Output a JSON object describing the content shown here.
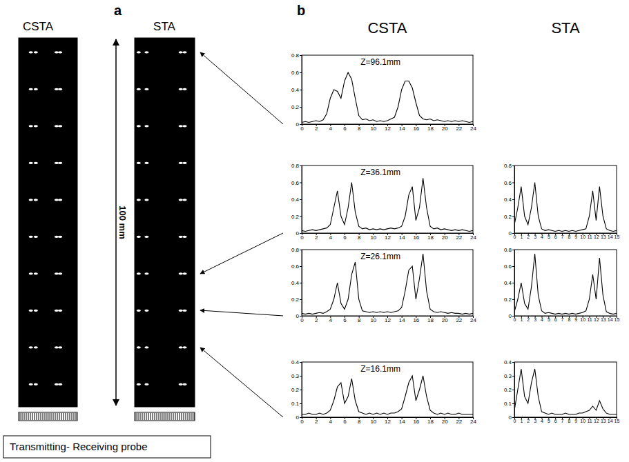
{
  "chart_data": [
    {
      "type": "scatter",
      "title": "CSTA",
      "annotations": [
        "a",
        "Transmitting- Receiving probe"
      ],
      "x": [
        5,
        7,
        15.5,
        17,
        5,
        7,
        15.5,
        17,
        5,
        7,
        15.5,
        17,
        5,
        7,
        15.5,
        17,
        5,
        7,
        15.5,
        17,
        5,
        7,
        15.5,
        17,
        5,
        7,
        15.5,
        17,
        5,
        7,
        15.5,
        17,
        5,
        7,
        15.5,
        17,
        5,
        7,
        15.5,
        17
      ],
      "values": [
        6.1,
        6.1,
        6.1,
        6.1,
        16.1,
        16.1,
        16.1,
        16.1,
        26.1,
        26.1,
        26.1,
        26.1,
        36.1,
        36.1,
        36.1,
        36.1,
        46.1,
        46.1,
        46.1,
        46.1,
        56.1,
        56.1,
        56.1,
        56.1,
        66.1,
        66.1,
        66.1,
        66.1,
        76.1,
        76.1,
        76.1,
        76.1,
        86.1,
        86.1,
        86.1,
        86.1,
        96.1,
        96.1,
        96.1,
        96.1
      ],
      "xlim": [
        0,
        24
      ],
      "ylim": [
        0,
        100
      ],
      "tick_labels": false,
      "marker": "dash",
      "color": "#ffffff"
    },
    {
      "type": "scatter",
      "title": "STA",
      "annotations": [
        "100 mm"
      ],
      "x": [
        1,
        3,
        11.5,
        12.5,
        1,
        3,
        11.5,
        12.5,
        1,
        3,
        11.5,
        12.5,
        1,
        3,
        11.5,
        12.5,
        1,
        3,
        11.5,
        12.5,
        1,
        3,
        11.5,
        12.5,
        1,
        3,
        11.5,
        12.5,
        1,
        3,
        11.5,
        12.5,
        1,
        3,
        11.5,
        12.5,
        1,
        3,
        11.5,
        12.5
      ],
      "values": [
        6.1,
        6.1,
        6.1,
        6.1,
        16.1,
        16.1,
        16.1,
        16.1,
        26.1,
        26.1,
        26.1,
        26.1,
        36.1,
        36.1,
        36.1,
        36.1,
        46.1,
        46.1,
        46.1,
        46.1,
        56.1,
        56.1,
        56.1,
        56.1,
        66.1,
        66.1,
        66.1,
        66.1,
        76.1,
        76.1,
        76.1,
        76.1,
        86.1,
        86.1,
        86.1,
        86.1,
        96.1,
        96.1,
        96.1,
        96.1
      ],
      "xlim": [
        0,
        15
      ],
      "ylim": [
        0,
        100
      ],
      "tick_labels": false,
      "marker": "dash",
      "color": "#ffffff"
    },
    {
      "type": "line",
      "title": "CSTA",
      "annotations": [
        "b",
        "Z=96.1mm"
      ],
      "x": [
        0,
        0.5,
        1,
        1.5,
        2,
        2.5,
        3,
        3.5,
        4,
        4.5,
        5,
        5.5,
        6,
        6.5,
        7,
        7.5,
        8,
        8.5,
        9,
        9.5,
        10,
        10.5,
        11,
        11.5,
        12,
        12.5,
        13,
        13.5,
        14,
        14.5,
        15,
        15.5,
        16,
        16.5,
        17,
        17.5,
        18,
        18.5,
        19,
        19.5,
        20,
        20.5,
        21,
        21.5,
        22,
        22.5,
        23,
        23.5,
        24
      ],
      "values": [
        0.02,
        0.03,
        0.02,
        0.03,
        0.04,
        0.03,
        0.05,
        0.12,
        0.3,
        0.4,
        0.38,
        0.3,
        0.5,
        0.6,
        0.52,
        0.3,
        0.1,
        0.05,
        0.06,
        0.04,
        0.05,
        0.03,
        0.04,
        0.03,
        0.04,
        0.06,
        0.08,
        0.2,
        0.4,
        0.5,
        0.5,
        0.42,
        0.25,
        0.1,
        0.06,
        0.05,
        0.06,
        0.04,
        0.05,
        0.04,
        0.03,
        0.04,
        0.03,
        0.04,
        0.03,
        0.04,
        0.03,
        0.02,
        0.03
      ],
      "xlim": [
        0,
        24
      ],
      "ylim": [
        0,
        0.8
      ],
      "xticks": [
        0,
        2,
        4,
        6,
        8,
        10,
        12,
        14,
        16,
        18,
        20,
        22,
        24
      ],
      "yticks": [
        0,
        0.2,
        0.4,
        0.6,
        0.8
      ],
      "color": "#000000"
    },
    {
      "type": "line",
      "annotations": [
        "Z=36.1mm"
      ],
      "x": [
        0,
        0.5,
        1,
        1.5,
        2,
        2.5,
        3,
        3.5,
        4,
        4.5,
        5,
        5.5,
        6,
        6.5,
        7,
        7.5,
        8,
        8.5,
        9,
        9.5,
        10,
        10.5,
        11,
        11.5,
        12,
        12.5,
        13,
        13.5,
        14,
        14.5,
        15,
        15.5,
        16,
        16.5,
        17,
        17.5,
        18,
        18.5,
        19,
        19.5,
        20,
        20.5,
        21,
        21.5,
        22,
        22.5,
        23,
        23.5,
        24
      ],
      "values": [
        0.03,
        0.02,
        0.03,
        0.04,
        0.03,
        0.04,
        0.05,
        0.06,
        0.1,
        0.3,
        0.5,
        0.2,
        0.1,
        0.3,
        0.6,
        0.25,
        0.08,
        0.05,
        0.06,
        0.04,
        0.05,
        0.04,
        0.05,
        0.04,
        0.05,
        0.06,
        0.05,
        0.06,
        0.08,
        0.2,
        0.45,
        0.55,
        0.15,
        0.3,
        0.65,
        0.3,
        0.08,
        0.05,
        0.06,
        0.04,
        0.05,
        0.04,
        0.03,
        0.04,
        0.03,
        0.04,
        0.03,
        0.02,
        0.03
      ],
      "xlim": [
        0,
        24
      ],
      "ylim": [
        0,
        0.8
      ],
      "xticks": [
        0,
        2,
        4,
        6,
        8,
        10,
        12,
        14,
        16,
        18,
        20,
        22,
        24
      ],
      "yticks": [
        0,
        0.2,
        0.4,
        0.6,
        0.8
      ],
      "color": "#000000"
    },
    {
      "type": "line",
      "annotations": [
        "Z=26.1mm"
      ],
      "x": [
        0,
        0.5,
        1,
        1.5,
        2,
        2.5,
        3,
        3.5,
        4,
        4.5,
        5,
        5.5,
        6,
        6.5,
        7,
        7.5,
        8,
        8.5,
        9,
        9.5,
        10,
        10.5,
        11,
        11.5,
        12,
        12.5,
        13,
        13.5,
        14,
        14.5,
        15,
        15.5,
        16,
        16.5,
        17,
        17.5,
        18,
        18.5,
        19,
        19.5,
        20,
        20.5,
        21,
        21.5,
        22,
        22.5,
        23,
        23.5,
        24
      ],
      "values": [
        0.03,
        0.02,
        0.03,
        0.02,
        0.03,
        0.04,
        0.03,
        0.05,
        0.08,
        0.2,
        0.4,
        0.15,
        0.08,
        0.2,
        0.5,
        0.65,
        0.2,
        0.06,
        0.05,
        0.04,
        0.05,
        0.04,
        0.05,
        0.04,
        0.05,
        0.04,
        0.05,
        0.06,
        0.1,
        0.3,
        0.55,
        0.6,
        0.2,
        0.45,
        0.75,
        0.3,
        0.08,
        0.05,
        0.04,
        0.05,
        0.04,
        0.03,
        0.04,
        0.03,
        0.03,
        0.02,
        0.03,
        0.02,
        0.03
      ],
      "xlim": [
        0,
        24
      ],
      "ylim": [
        0,
        0.8
      ],
      "xticks": [
        0,
        2,
        4,
        6,
        8,
        10,
        12,
        14,
        16,
        18,
        20,
        22,
        24
      ],
      "yticks": [
        0,
        0.2,
        0.4,
        0.6,
        0.8
      ],
      "color": "#000000"
    },
    {
      "type": "line",
      "annotations": [
        "Z=16.1mm"
      ],
      "x": [
        0,
        0.5,
        1,
        1.5,
        2,
        2.5,
        3,
        3.5,
        4,
        4.5,
        5,
        5.5,
        6,
        6.5,
        7,
        7.5,
        8,
        8.5,
        9,
        9.5,
        10,
        10.5,
        11,
        11.5,
        12,
        12.5,
        13,
        13.5,
        14,
        14.5,
        15,
        15.5,
        16,
        16.5,
        17,
        17.5,
        18,
        18.5,
        19,
        19.5,
        20,
        20.5,
        21,
        21.5,
        22,
        22.5,
        23,
        23.5,
        24
      ],
      "values": [
        0.02,
        0.02,
        0.03,
        0.02,
        0.02,
        0.03,
        0.02,
        0.03,
        0.05,
        0.12,
        0.22,
        0.25,
        0.1,
        0.15,
        0.28,
        0.12,
        0.04,
        0.03,
        0.02,
        0.03,
        0.02,
        0.03,
        0.02,
        0.03,
        0.02,
        0.03,
        0.03,
        0.04,
        0.06,
        0.15,
        0.25,
        0.3,
        0.12,
        0.2,
        0.3,
        0.15,
        0.05,
        0.03,
        0.02,
        0.03,
        0.02,
        0.03,
        0.02,
        0.02,
        0.03,
        0.02,
        0.02,
        0.02,
        0.02
      ],
      "xlim": [
        0,
        24
      ],
      "ylim": [
        0,
        0.4
      ],
      "xticks": [
        0,
        2,
        4,
        6,
        8,
        10,
        12,
        14,
        16,
        18,
        20,
        22,
        24
      ],
      "yticks": [
        0,
        0.1,
        0.2,
        0.3,
        0.4
      ],
      "color": "#000000"
    },
    {
      "type": "line",
      "title": "STA",
      "x": [
        0,
        0.5,
        1,
        1.5,
        2,
        2.5,
        3,
        3.5,
        4,
        4.5,
        5,
        5.5,
        6,
        6.5,
        7,
        7.5,
        8,
        8.5,
        9,
        9.5,
        10,
        10.5,
        11,
        11.5,
        12,
        12.5,
        13,
        13.5,
        14,
        14.5,
        15
      ],
      "values": [
        0.1,
        0.3,
        0.55,
        0.2,
        0.1,
        0.3,
        0.6,
        0.2,
        0.05,
        0.03,
        0.04,
        0.03,
        0.02,
        0.03,
        0.02,
        0.03,
        0.02,
        0.03,
        0.02,
        0.03,
        0.04,
        0.05,
        0.2,
        0.5,
        0.15,
        0.55,
        0.2,
        0.05,
        0.03,
        0.02,
        0.03
      ],
      "xlim": [
        0,
        15
      ],
      "ylim": [
        0,
        0.8
      ],
      "xticks": [
        0,
        1,
        2,
        3,
        4,
        5,
        6,
        7,
        8,
        9,
        10,
        11,
        12,
        13,
        14,
        15
      ],
      "yticks": [
        0,
        0.2,
        0.4,
        0.6,
        0.8
      ],
      "color": "#000000"
    },
    {
      "type": "line",
      "x": [
        0,
        0.5,
        1,
        1.5,
        2,
        2.5,
        3,
        3.5,
        4,
        4.5,
        5,
        5.5,
        6,
        6.5,
        7,
        7.5,
        8,
        8.5,
        9,
        9.5,
        10,
        10.5,
        11,
        11.5,
        12,
        12.5,
        13,
        13.5,
        14,
        14.5,
        15
      ],
      "values": [
        0.05,
        0.2,
        0.4,
        0.15,
        0.08,
        0.35,
        0.75,
        0.25,
        0.06,
        0.03,
        0.04,
        0.03,
        0.02,
        0.03,
        0.02,
        0.03,
        0.02,
        0.03,
        0.02,
        0.03,
        0.04,
        0.06,
        0.2,
        0.5,
        0.2,
        0.7,
        0.25,
        0.05,
        0.03,
        0.02,
        0.03
      ],
      "xlim": [
        0,
        15
      ],
      "ylim": [
        0,
        0.8
      ],
      "xticks": [
        0,
        1,
        2,
        3,
        4,
        5,
        6,
        7,
        8,
        9,
        10,
        11,
        12,
        13,
        14,
        15
      ],
      "yticks": [
        0,
        0.2,
        0.4,
        0.6,
        0.8
      ],
      "color": "#000000"
    },
    {
      "type": "line",
      "x": [
        0,
        0.5,
        1,
        1.5,
        2,
        2.5,
        3,
        3.5,
        4,
        4.5,
        5,
        5.5,
        6,
        6.5,
        7,
        7.5,
        8,
        8.5,
        9,
        9.5,
        10,
        10.5,
        11,
        11.5,
        12,
        12.5,
        13,
        13.5,
        14,
        14.5,
        15
      ],
      "values": [
        0.05,
        0.2,
        0.35,
        0.15,
        0.1,
        0.25,
        0.35,
        0.15,
        0.04,
        0.03,
        0.02,
        0.03,
        0.02,
        0.02,
        0.02,
        0.03,
        0.02,
        0.02,
        0.02,
        0.03,
        0.03,
        0.04,
        0.05,
        0.08,
        0.05,
        0.12,
        0.06,
        0.03,
        0.02,
        0.02,
        0.02
      ],
      "xlim": [
        0,
        15
      ],
      "ylim": [
        0,
        0.4
      ],
      "xticks": [
        0,
        1,
        2,
        3,
        4,
        5,
        6,
        7,
        8,
        9,
        10,
        11,
        12,
        13,
        14,
        15
      ],
      "yticks": [
        0,
        0.1,
        0.2,
        0.3,
        0.4
      ],
      "color": "#000000"
    }
  ]
}
